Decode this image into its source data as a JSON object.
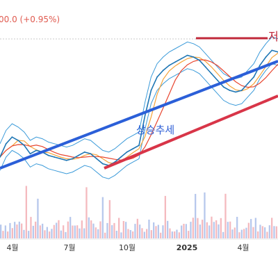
{
  "header": {
    "change_text": "00.0 (+0.95%)"
  },
  "chart_data": {
    "type": "line",
    "x_ticks": [
      "4월",
      "7월",
      "10월",
      "2025",
      "4월"
    ],
    "annotations": {
      "trend_label": "상승추세",
      "edge_label": "저"
    },
    "series": [
      {
        "values": [
          40,
          48,
          52,
          50,
          47,
          42,
          44,
          43,
          41,
          40,
          39,
          38,
          39,
          41,
          43,
          42,
          39,
          36,
          35,
          37,
          40,
          43,
          45,
          47,
          65,
          80,
          88,
          92,
          95,
          97,
          99,
          101,
          100,
          98,
          94,
          90,
          86,
          82,
          80,
          79,
          80,
          84,
          88,
          95,
          100,
          104,
          103
        ]
      }
    ],
    "colors": {
      "price": "#1e76b4",
      "band": "#3a9ad9",
      "ma_fast": "#f5a43a",
      "ma_slow": "#e8452f",
      "trend": "#2b5fd8",
      "support": "#d83548",
      "volume_up": "#f0a3a9",
      "volume_down": "#9fb6e6"
    }
  }
}
